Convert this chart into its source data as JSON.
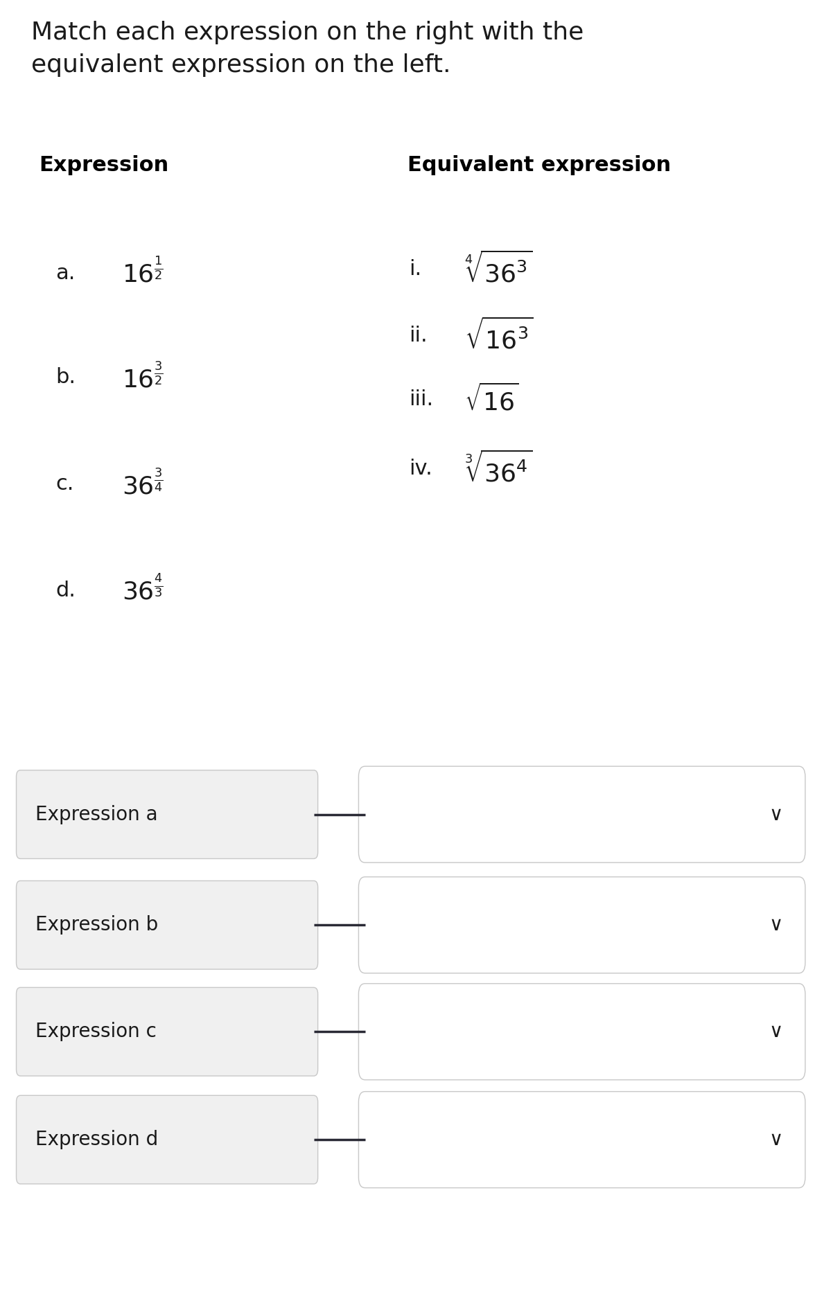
{
  "title_line1": "Match each expression on the right with the",
  "title_line2": "equivalent expression on the left.",
  "col_left_header": "Expression",
  "col_right_header": "Equivalent expression",
  "left_expressions": [
    {
      "label": "a.",
      "expr": "$16^{\\frac{1}{2}}$"
    },
    {
      "label": "b.",
      "expr": "$16^{\\frac{3}{2}}$"
    },
    {
      "label": "c.",
      "expr": "$36^{\\frac{3}{4}}$"
    },
    {
      "label": "d.",
      "expr": "$36^{\\frac{4}{3}}$"
    }
  ],
  "right_expressions": [
    {
      "label": "i.",
      "expr": "$\\sqrt[4]{36^3}$"
    },
    {
      "label": "ii.",
      "expr": "$\\sqrt{16^3}$"
    },
    {
      "label": "iii.",
      "expr": "$\\sqrt{16}$"
    },
    {
      "label": "iv.",
      "expr": "$\\sqrt[3]{36^4}$"
    }
  ],
  "dropdown_labels": [
    "Expression a",
    "Expression b",
    "Expression c",
    "Expression d"
  ],
  "bg_color": "#ffffff",
  "box_fill_left": "#f0f0f0",
  "box_fill_right": "#ffffff",
  "box_edge_color": "#c8c8c8",
  "line_color": "#2a2a35",
  "text_color": "#1a1a1a",
  "header_color": "#000000",
  "title_fontsize": 26,
  "header_fontsize": 22,
  "label_fontsize": 22,
  "expr_fontsize": 26,
  "dropdown_fontsize": 20
}
